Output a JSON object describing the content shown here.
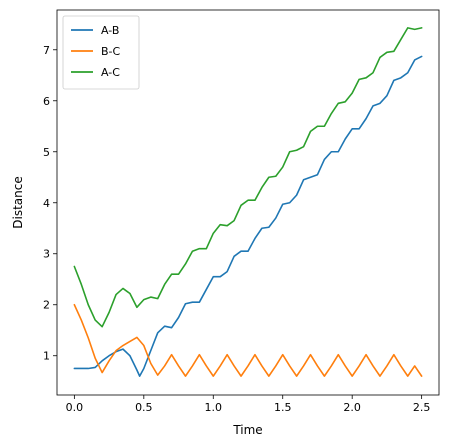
{
  "chart_data": {
    "type": "line",
    "xlabel": "Time",
    "ylabel": "Distance",
    "xlim": [
      -0.125,
      2.625
    ],
    "ylim": [
      0.23,
      7.78
    ],
    "xticks": [
      0.0,
      0.5,
      1.0,
      1.5,
      2.0,
      2.5
    ],
    "xtick_labels": [
      "0.0",
      "0.5",
      "1.0",
      "1.5",
      "2.0",
      "2.5"
    ],
    "yticks": [
      1,
      2,
      3,
      4,
      5,
      6,
      7
    ],
    "ytick_labels": [
      "1",
      "2",
      "3",
      "4",
      "5",
      "6",
      "7"
    ],
    "grid": false,
    "legend_position": "top-left",
    "series": [
      {
        "name": "A-B",
        "color": "#1f77b4",
        "points": [
          [
            0.0,
            0.75
          ],
          [
            0.1,
            0.75
          ],
          [
            0.15,
            0.77
          ],
          [
            0.2,
            0.9
          ],
          [
            0.25,
            1.0
          ],
          [
            0.3,
            1.08
          ],
          [
            0.35,
            1.13
          ],
          [
            0.4,
            1.0
          ],
          [
            0.45,
            0.72
          ],
          [
            0.47,
            0.6
          ],
          [
            0.5,
            0.75
          ],
          [
            0.55,
            1.1
          ],
          [
            0.6,
            1.45
          ],
          [
            0.65,
            1.58
          ],
          [
            0.7,
            1.55
          ],
          [
            0.75,
            1.75
          ],
          [
            0.8,
            2.02
          ],
          [
            0.85,
            2.05
          ],
          [
            0.9,
            2.05
          ],
          [
            0.95,
            2.3
          ],
          [
            1.0,
            2.55
          ],
          [
            1.05,
            2.55
          ],
          [
            1.1,
            2.65
          ],
          [
            1.15,
            2.95
          ],
          [
            1.2,
            3.05
          ],
          [
            1.25,
            3.05
          ],
          [
            1.3,
            3.3
          ],
          [
            1.35,
            3.5
          ],
          [
            1.4,
            3.52
          ],
          [
            1.45,
            3.7
          ],
          [
            1.5,
            3.97
          ],
          [
            1.55,
            4.0
          ],
          [
            1.6,
            4.15
          ],
          [
            1.65,
            4.45
          ],
          [
            1.7,
            4.5
          ],
          [
            1.75,
            4.55
          ],
          [
            1.8,
            4.85
          ],
          [
            1.85,
            5.0
          ],
          [
            1.9,
            5.0
          ],
          [
            1.95,
            5.25
          ],
          [
            2.0,
            5.45
          ],
          [
            2.05,
            5.45
          ],
          [
            2.1,
            5.65
          ],
          [
            2.15,
            5.9
          ],
          [
            2.2,
            5.95
          ],
          [
            2.25,
            6.1
          ],
          [
            2.3,
            6.4
          ],
          [
            2.35,
            6.45
          ],
          [
            2.4,
            6.55
          ],
          [
            2.45,
            6.8
          ],
          [
            2.5,
            6.87
          ]
        ]
      },
      {
        "name": "B-C",
        "color": "#ff7f0e",
        "points": [
          [
            0.0,
            2.0
          ],
          [
            0.05,
            1.7
          ],
          [
            0.1,
            1.35
          ],
          [
            0.15,
            0.95
          ],
          [
            0.2,
            0.67
          ],
          [
            0.25,
            0.9
          ],
          [
            0.3,
            1.1
          ],
          [
            0.35,
            1.2
          ],
          [
            0.4,
            1.28
          ],
          [
            0.45,
            1.36
          ],
          [
            0.5,
            1.2
          ],
          [
            0.55,
            0.85
          ],
          [
            0.6,
            0.62
          ],
          [
            0.65,
            0.8
          ],
          [
            0.7,
            1.02
          ],
          [
            0.75,
            0.8
          ],
          [
            0.8,
            0.6
          ],
          [
            0.85,
            0.8
          ],
          [
            0.9,
            1.02
          ],
          [
            0.95,
            0.8
          ],
          [
            1.0,
            0.6
          ],
          [
            1.05,
            0.8
          ],
          [
            1.1,
            1.02
          ],
          [
            1.15,
            0.8
          ],
          [
            1.2,
            0.6
          ],
          [
            1.25,
            0.8
          ],
          [
            1.3,
            1.02
          ],
          [
            1.35,
            0.8
          ],
          [
            1.4,
            0.6
          ],
          [
            1.45,
            0.8
          ],
          [
            1.5,
            1.02
          ],
          [
            1.55,
            0.8
          ],
          [
            1.6,
            0.6
          ],
          [
            1.65,
            0.8
          ],
          [
            1.7,
            1.02
          ],
          [
            1.75,
            0.8
          ],
          [
            1.8,
            0.6
          ],
          [
            1.85,
            0.8
          ],
          [
            1.9,
            1.02
          ],
          [
            1.95,
            0.8
          ],
          [
            2.0,
            0.6
          ],
          [
            2.05,
            0.8
          ],
          [
            2.1,
            1.02
          ],
          [
            2.15,
            0.8
          ],
          [
            2.2,
            0.6
          ],
          [
            2.25,
            0.8
          ],
          [
            2.3,
            1.02
          ],
          [
            2.35,
            0.8
          ],
          [
            2.4,
            0.6
          ],
          [
            2.45,
            0.8
          ],
          [
            2.5,
            0.6
          ]
        ]
      },
      {
        "name": "A-C",
        "color": "#2ca02c",
        "points": [
          [
            0.0,
            2.75
          ],
          [
            0.05,
            2.4
          ],
          [
            0.1,
            2.0
          ],
          [
            0.15,
            1.7
          ],
          [
            0.2,
            1.57
          ],
          [
            0.25,
            1.85
          ],
          [
            0.3,
            2.2
          ],
          [
            0.35,
            2.32
          ],
          [
            0.4,
            2.22
          ],
          [
            0.45,
            1.95
          ],
          [
            0.5,
            2.1
          ],
          [
            0.55,
            2.15
          ],
          [
            0.6,
            2.12
          ],
          [
            0.65,
            2.4
          ],
          [
            0.7,
            2.6
          ],
          [
            0.75,
            2.6
          ],
          [
            0.8,
            2.8
          ],
          [
            0.85,
            3.05
          ],
          [
            0.9,
            3.1
          ],
          [
            0.95,
            3.1
          ],
          [
            1.0,
            3.4
          ],
          [
            1.05,
            3.57
          ],
          [
            1.1,
            3.55
          ],
          [
            1.15,
            3.65
          ],
          [
            1.2,
            3.95
          ],
          [
            1.25,
            4.05
          ],
          [
            1.3,
            4.05
          ],
          [
            1.35,
            4.3
          ],
          [
            1.4,
            4.5
          ],
          [
            1.45,
            4.52
          ],
          [
            1.5,
            4.7
          ],
          [
            1.55,
            5.0
          ],
          [
            1.6,
            5.03
          ],
          [
            1.65,
            5.1
          ],
          [
            1.7,
            5.4
          ],
          [
            1.75,
            5.5
          ],
          [
            1.8,
            5.5
          ],
          [
            1.85,
            5.75
          ],
          [
            1.9,
            5.95
          ],
          [
            1.95,
            5.98
          ],
          [
            2.0,
            6.15
          ],
          [
            2.05,
            6.42
          ],
          [
            2.1,
            6.45
          ],
          [
            2.15,
            6.55
          ],
          [
            2.2,
            6.85
          ],
          [
            2.25,
            6.95
          ],
          [
            2.3,
            6.97
          ],
          [
            2.35,
            7.2
          ],
          [
            2.4,
            7.43
          ],
          [
            2.45,
            7.4
          ],
          [
            2.5,
            7.43
          ]
        ]
      }
    ]
  }
}
